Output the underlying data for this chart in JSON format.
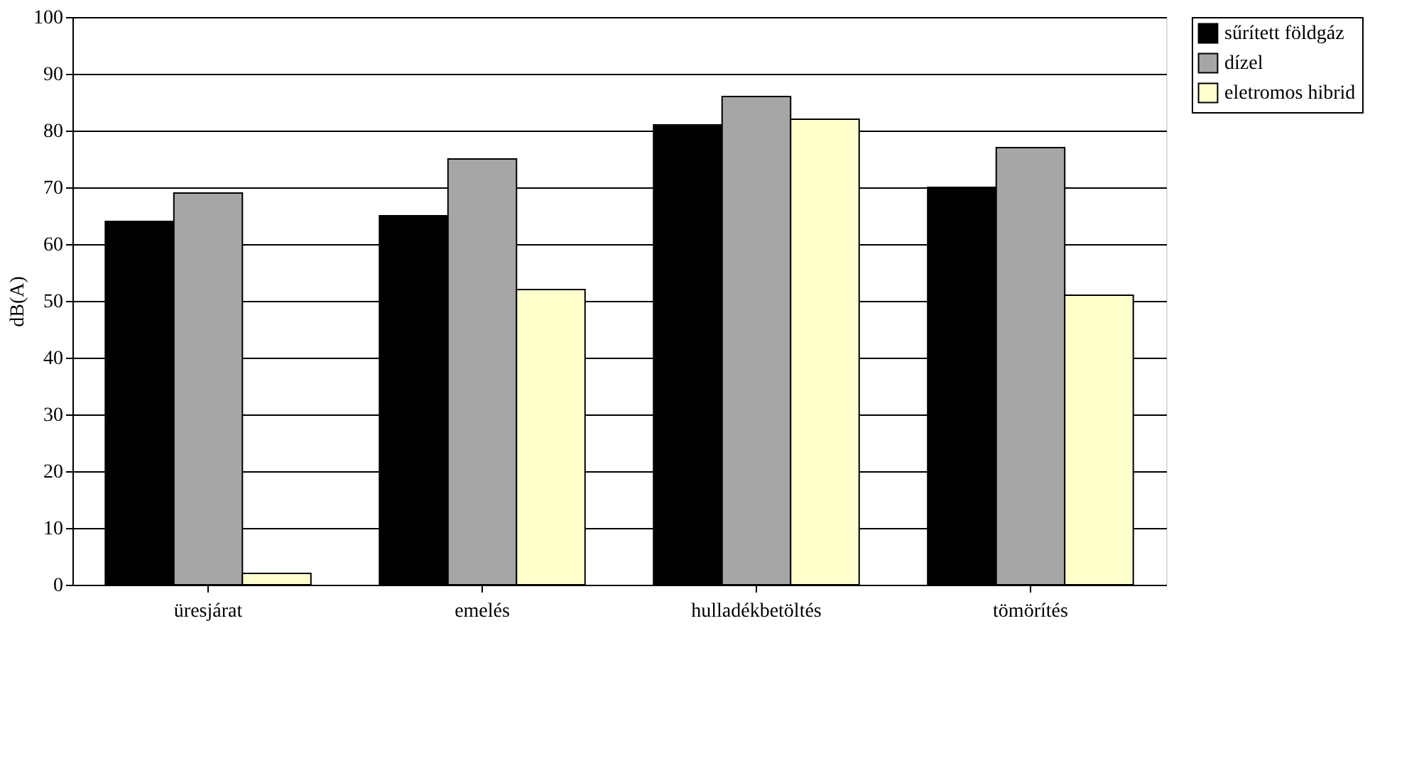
{
  "chart_data": {
    "type": "bar",
    "ylabel": "dB(A)",
    "categories": [
      "üresjárat",
      "emelés",
      "hulladékbetöltés",
      "tömörítés"
    ],
    "series": [
      {
        "name": "sűrített földgáz",
        "color": "#000000",
        "values": [
          64,
          65,
          81,
          70
        ]
      },
      {
        "name": "dízel",
        "color": "#a6a6a6",
        "values": [
          69,
          75,
          86,
          77
        ]
      },
      {
        "name": "eletromos hibrid",
        "color": "#ffffcc",
        "values": [
          2,
          52,
          82,
          51
        ]
      }
    ],
    "ylim": [
      0,
      100
    ],
    "yticks": [
      0,
      10,
      20,
      30,
      40,
      50,
      60,
      70,
      80,
      90,
      100
    ],
    "grid": "y",
    "legend": "right"
  }
}
